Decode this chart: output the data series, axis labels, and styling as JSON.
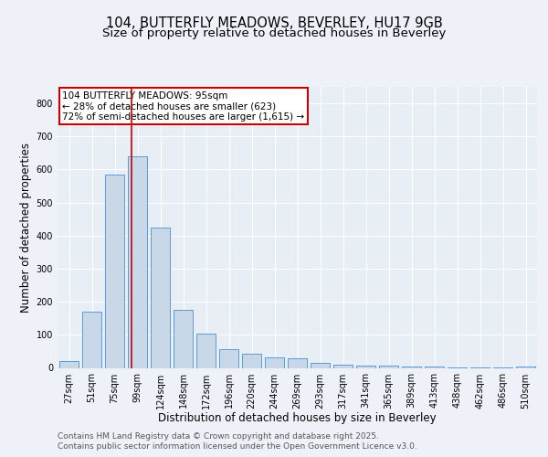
{
  "title1": "104, BUTTERFLY MEADOWS, BEVERLEY, HU17 9GB",
  "title2": "Size of property relative to detached houses in Beverley",
  "xlabel": "Distribution of detached houses by size in Beverley",
  "ylabel": "Number of detached properties",
  "categories": [
    "27sqm",
    "51sqm",
    "75sqm",
    "99sqm",
    "124sqm",
    "148sqm",
    "172sqm",
    "196sqm",
    "220sqm",
    "244sqm",
    "269sqm",
    "293sqm",
    "317sqm",
    "341sqm",
    "365sqm",
    "389sqm",
    "413sqm",
    "438sqm",
    "462sqm",
    "486sqm",
    "510sqm"
  ],
  "values": [
    20,
    170,
    585,
    640,
    425,
    175,
    105,
    57,
    42,
    32,
    30,
    14,
    10,
    8,
    6,
    4,
    3,
    2,
    2,
    1,
    5
  ],
  "bar_color": "#c8d8e8",
  "bar_edge_color": "#5b9bd5",
  "red_line_x": 2.75,
  "annotation_text": "104 BUTTERFLY MEADOWS: 95sqm\n← 28% of detached houses are smaller (623)\n72% of semi-detached houses are larger (1,615) →",
  "annotation_box_color": "#ffffff",
  "annotation_box_edge": "#cc0000",
  "ylim": [
    0,
    850
  ],
  "yticks": [
    0,
    100,
    200,
    300,
    400,
    500,
    600,
    700,
    800
  ],
  "footer1": "Contains HM Land Registry data © Crown copyright and database right 2025.",
  "footer2": "Contains public sector information licensed under the Open Government Licence v3.0.",
  "background_color": "#eef2f8",
  "plot_bg_color": "#e8eef6",
  "grid_color": "#ffffff",
  "title_fontsize": 10.5,
  "subtitle_fontsize": 9.5,
  "axis_label_fontsize": 8.5,
  "tick_fontsize": 7,
  "annotation_fontsize": 7.5,
  "footer_fontsize": 6.5
}
